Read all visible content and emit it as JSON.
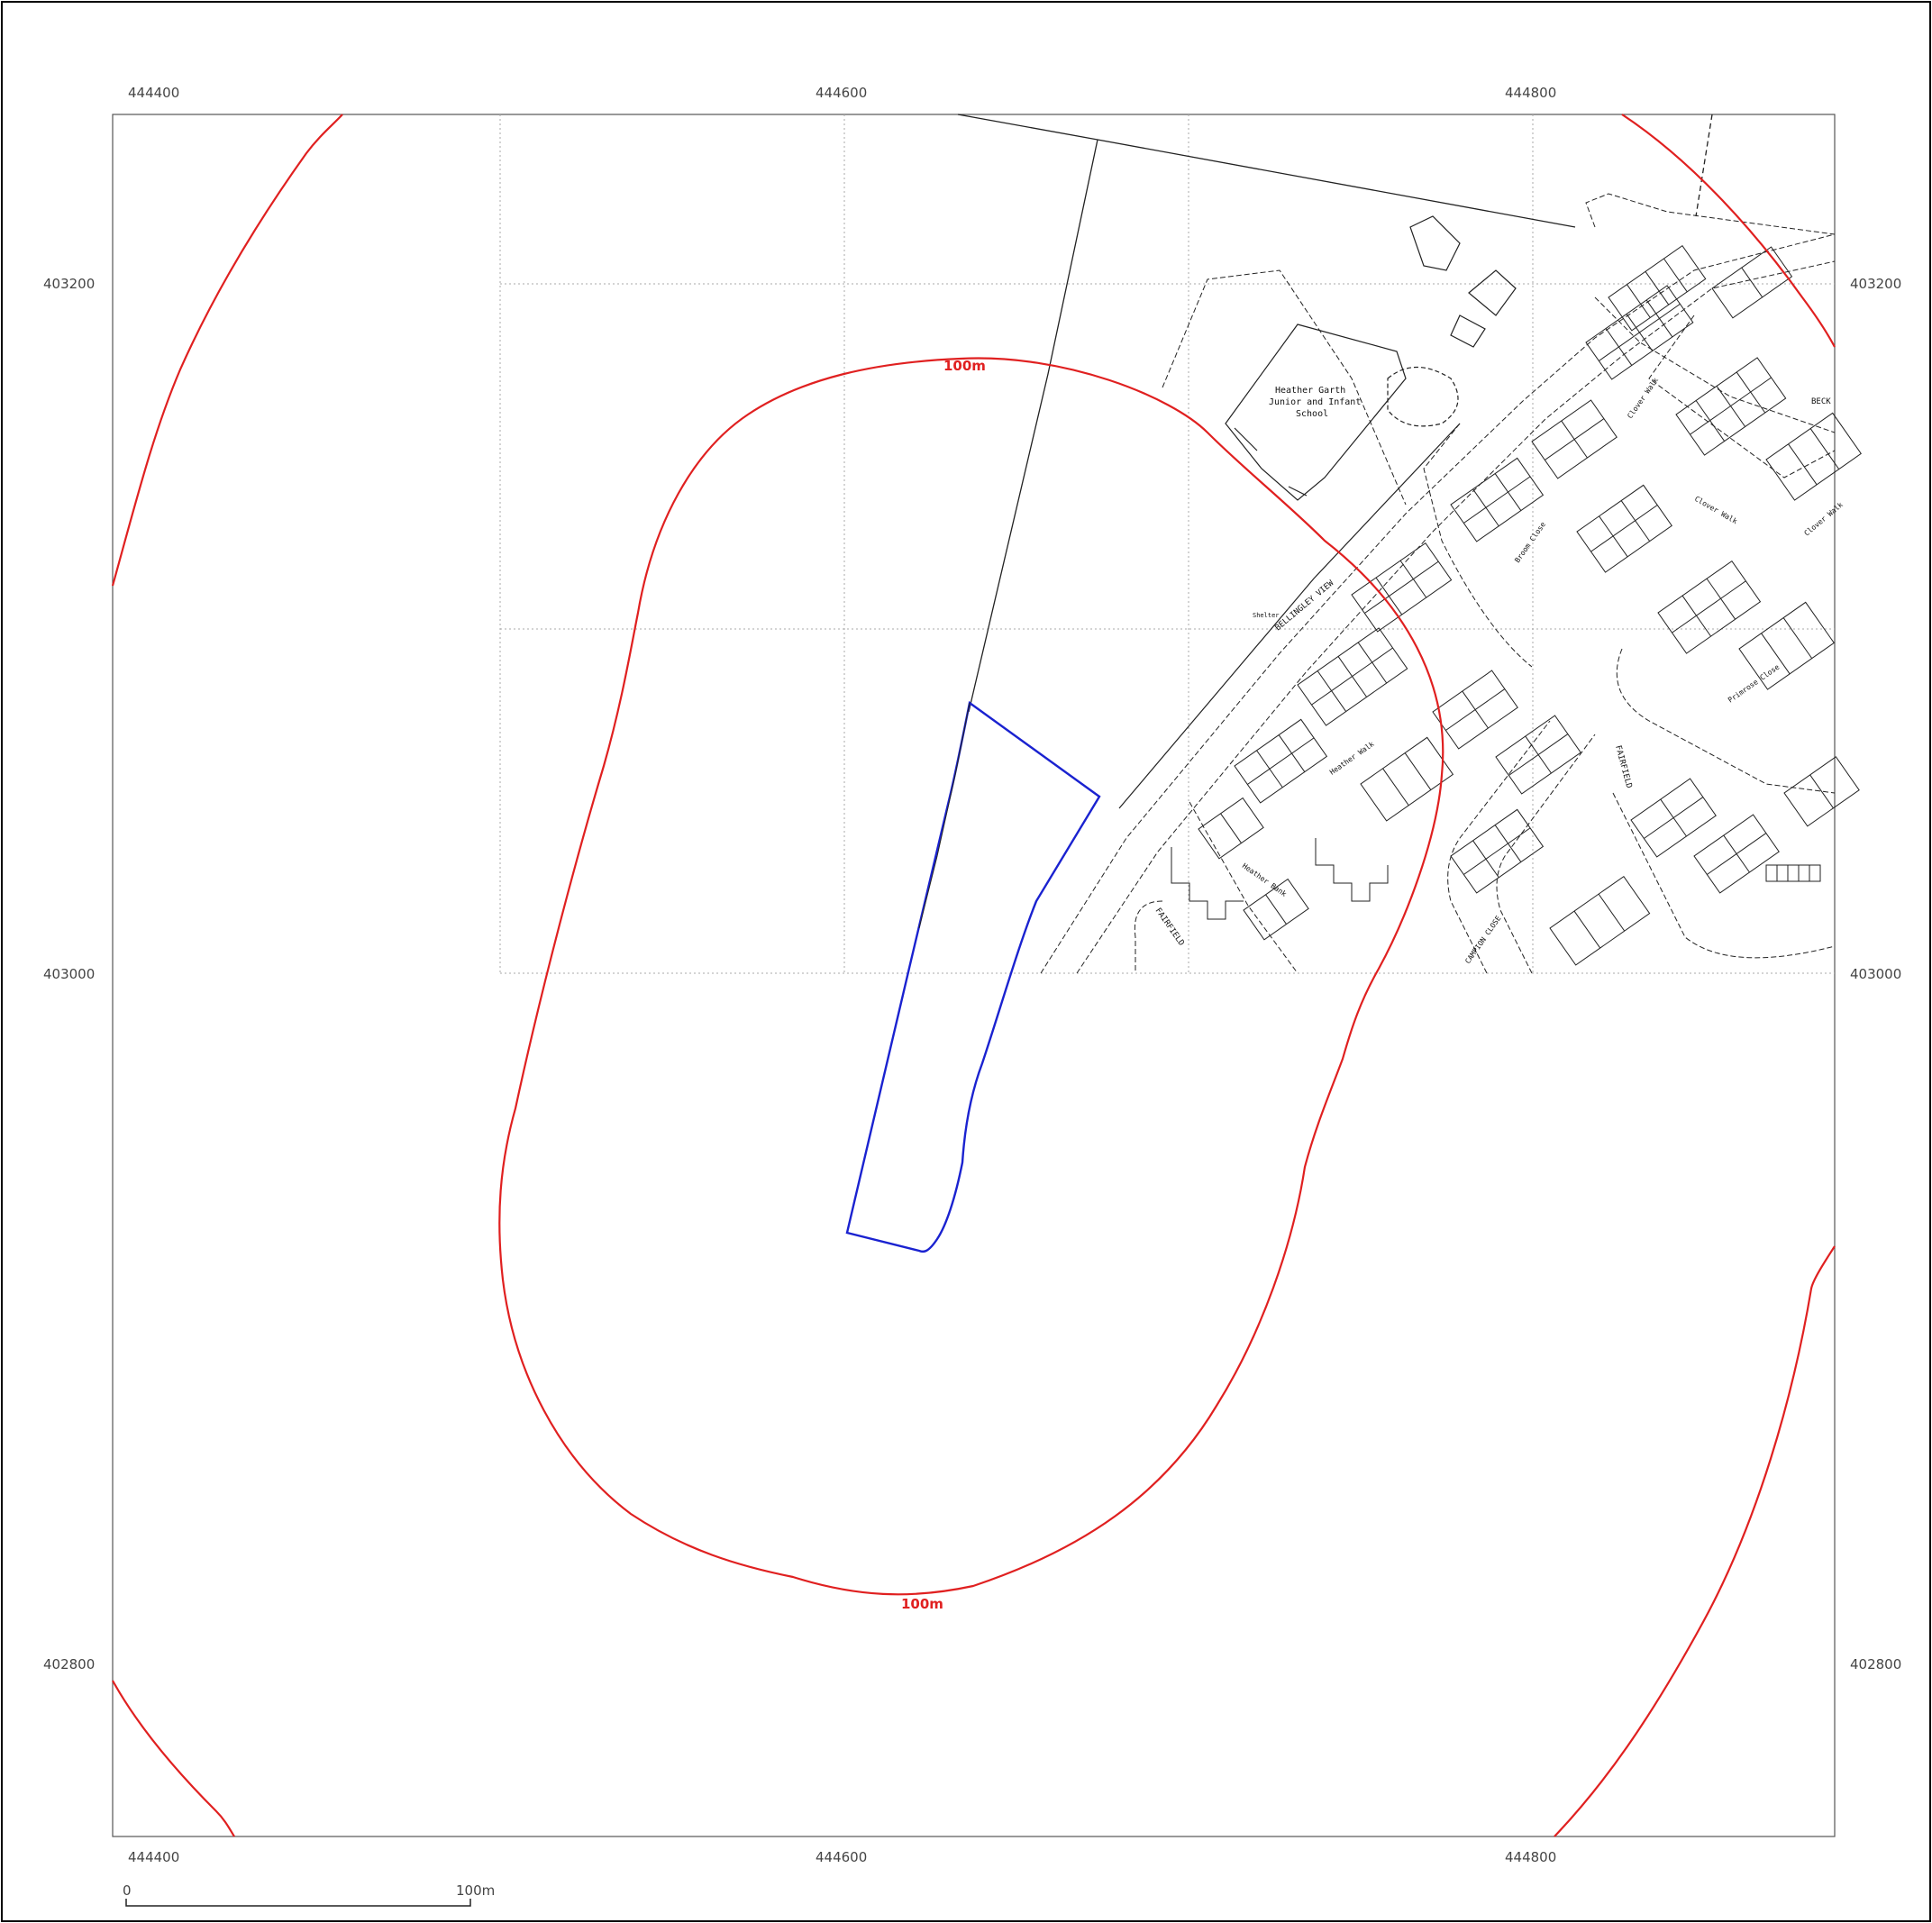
{
  "map": {
    "top_eastings": [
      "444400",
      "444600",
      "444800"
    ],
    "bottom_eastings": [
      "444400",
      "444600",
      "444800"
    ],
    "left_northings": [
      "403200",
      "403000",
      "402800"
    ],
    "right_northings": [
      "403200",
      "403000",
      "402800"
    ],
    "buffer_labels": [
      "100m",
      "100m"
    ],
    "scale_bar": {
      "start": "0",
      "end": "100m"
    },
    "place_labels": {
      "school": [
        "Heather Garth",
        "Junior and Infant",
        "School"
      ],
      "shelter": "Shelter",
      "bellingley_view": "BELLINGLEY VIEW",
      "broom_close": "Broom Close",
      "clover_walk_1": "Clover Walk",
      "clover_walk_2": "Clover Walk",
      "clover_walk_3": "Clover Walk",
      "heather_walk": "Heather Walk",
      "heather_bank": "Heather Bank",
      "primrose_close": "Primrose Close",
      "fairfield_1": "FAIRFIELD",
      "fairfield_2": "FAIRFIELD",
      "campion_close": "CAMPION CLOSE",
      "beck": "BECK"
    },
    "colors": {
      "buffer": "#e02020",
      "site_boundary": "#1a22d0",
      "linework": "#222222",
      "grid": "#999999"
    }
  }
}
